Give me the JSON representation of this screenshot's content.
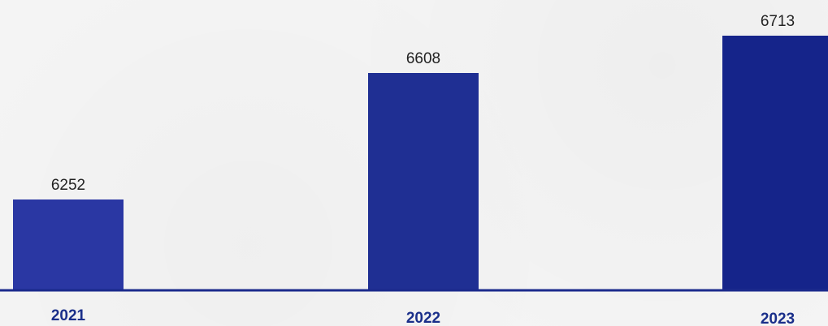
{
  "chart_data": {
    "type": "bar",
    "categories": [
      "2021",
      "2022",
      "2023"
    ],
    "values": [
      6252,
      6608,
      6713
    ],
    "data_labels": [
      "6252",
      "6608",
      "6713"
    ],
    "title": "",
    "xlabel": "",
    "ylabel": "",
    "grid": false,
    "legend": "none",
    "colors": {
      "bars": [
        "#2a37a3",
        "#1f2f93",
        "#15248a"
      ],
      "axis_line": "#1b2a8c",
      "category_labels": "#1a2f8a",
      "value_labels": "#222222"
    }
  }
}
